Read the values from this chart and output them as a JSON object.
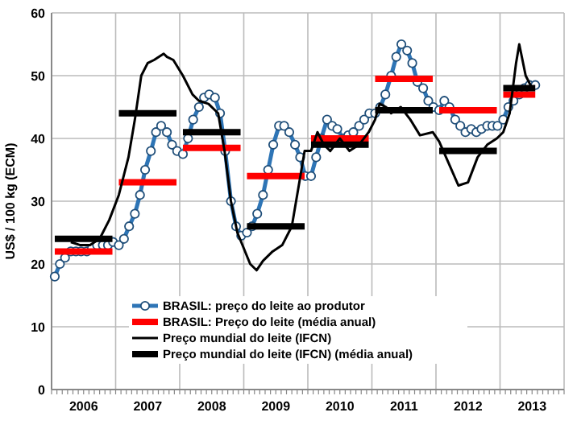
{
  "chart_data": {
    "type": "line",
    "ylabel": "US$ / 100 kg (ECM)",
    "xlim": [
      2006,
      2014
    ],
    "ylim": [
      0,
      60
    ],
    "yticks": [
      0,
      10,
      20,
      30,
      40,
      50,
      60
    ],
    "xticks": [
      {
        "value": 2006,
        "label": null
      },
      {
        "value": 2006.5,
        "label": "2006"
      },
      {
        "value": 2007,
        "label": null
      },
      {
        "value": 2007.5,
        "label": "2007"
      },
      {
        "value": 2008,
        "label": null
      },
      {
        "value": 2008.5,
        "label": "2008"
      },
      {
        "value": 2009,
        "label": null
      },
      {
        "value": 2009.5,
        "label": "2009"
      },
      {
        "value": 2010,
        "label": null
      },
      {
        "value": 2010.5,
        "label": "2010"
      },
      {
        "value": 2011,
        "label": null
      },
      {
        "value": 2011.5,
        "label": "2011"
      },
      {
        "value": 2012,
        "label": null
      },
      {
        "value": 2012.5,
        "label": "2012"
      },
      {
        "value": 2013,
        "label": null
      },
      {
        "value": 2013.5,
        "label": "2013"
      },
      {
        "value": 2014,
        "label": null
      }
    ],
    "grid": true,
    "legend": "bottom",
    "series": [
      {
        "name": "BRASIL: preço do leite ao produtor",
        "color": "#2e75b6",
        "marker": "circle",
        "x": [
          2006.05,
          2006.13,
          2006.21,
          2006.3,
          2006.38,
          2006.46,
          2006.55,
          2006.63,
          2006.71,
          2006.8,
          2006.88,
          2006.96,
          2007.05,
          2007.13,
          2007.21,
          2007.3,
          2007.38,
          2007.46,
          2007.55,
          2007.63,
          2007.71,
          2007.8,
          2007.88,
          2007.96,
          2008.05,
          2008.13,
          2008.21,
          2008.3,
          2008.38,
          2008.46,
          2008.55,
          2008.63,
          2008.71,
          2008.8,
          2008.88,
          2008.96,
          2009.05,
          2009.13,
          2009.21,
          2009.3,
          2009.38,
          2009.46,
          2009.55,
          2009.63,
          2009.71,
          2009.8,
          2009.88,
          2009.96,
          2010.05,
          2010.13,
          2010.21,
          2010.3,
          2010.38,
          2010.46,
          2010.55,
          2010.63,
          2010.71,
          2010.8,
          2010.88,
          2010.96,
          2011.05,
          2011.13,
          2011.21,
          2011.3,
          2011.38,
          2011.46,
          2011.55,
          2011.63,
          2011.71,
          2011.8,
          2011.88,
          2011.96,
          2012.05,
          2012.13,
          2012.21,
          2012.3,
          2012.38,
          2012.46,
          2012.55,
          2012.63,
          2012.71,
          2012.8,
          2012.88,
          2012.96,
          2013.05,
          2013.13,
          2013.21,
          2013.3,
          2013.38,
          2013.46,
          2013.55
        ],
        "values": [
          18,
          20,
          21,
          22,
          22,
          22,
          22,
          22.5,
          23,
          23,
          23,
          23.5,
          23,
          24,
          26,
          28,
          31,
          35,
          38,
          41,
          42,
          41,
          39,
          38,
          37.5,
          40,
          43,
          45,
          46.5,
          47,
          46.5,
          44,
          38,
          30,
          26,
          24.5,
          25,
          26,
          28,
          31,
          35,
          39,
          42,
          42,
          41,
          39,
          37,
          34,
          34,
          37,
          40,
          43,
          42,
          41.5,
          40,
          40.5,
          41,
          42,
          43,
          44,
          44,
          45,
          47,
          50,
          53,
          55,
          54,
          52,
          49,
          48,
          46,
          45,
          44.5,
          46,
          45,
          43,
          42,
          41,
          41.5,
          41,
          41.5,
          42,
          42,
          42,
          43,
          45,
          46,
          47,
          48,
          48.5,
          48.5
        ]
      },
      {
        "name": "BRASIL: Preço do leite (média anual)",
        "color": "#ff0000",
        "x": [
          2006.05,
          2006.95,
          2006.98,
          2007.05,
          2007.95,
          2007.98,
          2008.05,
          2008.95,
          2008.98,
          2009.05,
          2009.95,
          2009.98,
          2010.05,
          2010.95,
          2010.98,
          2011.05,
          2011.95,
          2011.98,
          2012.05,
          2012.95,
          2012.98,
          2013.05,
          2013.55
        ],
        "values": [
          22,
          22,
          null,
          33,
          33,
          null,
          38.5,
          38.5,
          null,
          34,
          34,
          null,
          40,
          40,
          null,
          49.5,
          49.5,
          null,
          44.5,
          44.5,
          null,
          47,
          47
        ]
      },
      {
        "name": "Preço mundial do leite (IFCN)",
        "color": "#000000",
        "x": [
          2006.3,
          2006.45,
          2006.6,
          2006.75,
          2006.9,
          2007.05,
          2007.2,
          2007.3,
          2007.4,
          2007.5,
          2007.6,
          2007.75,
          2007.8,
          2007.9,
          2008.05,
          2008.2,
          2008.3,
          2008.45,
          2008.6,
          2008.7,
          2008.8,
          2008.9,
          2009.1,
          2009.2,
          2009.3,
          2009.45,
          2009.6,
          2009.75,
          2009.85,
          2009.95,
          2010.05,
          2010.15,
          2010.25,
          2010.35,
          2010.5,
          2010.65,
          2010.8,
          2010.95,
          2011.05,
          2011.12,
          2011.22,
          2011.3,
          2011.45,
          2011.6,
          2011.75,
          2011.95,
          2012.05,
          2012.2,
          2012.35,
          2012.5,
          2012.65,
          2012.8,
          2012.95,
          2013.05,
          2013.15,
          2013.25,
          2013.3,
          2013.4,
          2013.5
        ],
        "values": [
          23.5,
          23,
          23,
          24,
          27,
          31,
          37,
          43,
          50,
          52,
          52.5,
          53.5,
          53,
          52.5,
          50,
          47,
          46,
          45.5,
          44,
          38,
          30,
          25,
          20,
          19,
          20.5,
          22,
          23,
          26,
          32,
          38,
          38,
          41,
          39,
          38,
          40,
          38,
          39,
          41,
          43,
          45.5,
          45,
          44,
          45,
          43,
          40.5,
          41,
          39.5,
          36,
          32.5,
          33,
          37,
          39,
          40,
          41,
          44,
          52,
          55,
          50,
          48
        ]
      },
      {
        "name": "Preço mundial do leite (IFCN)  (média anual)",
        "color": "#000000",
        "x": [
          2006.05,
          2006.95,
          2006.98,
          2007.05,
          2007.95,
          2007.98,
          2008.05,
          2008.95,
          2008.98,
          2009.05,
          2009.95,
          2009.98,
          2010.05,
          2010.95,
          2010.98,
          2011.05,
          2011.95,
          2011.98,
          2012.05,
          2012.95,
          2012.98,
          2013.05,
          2013.55
        ],
        "values": [
          24,
          24,
          null,
          44,
          44,
          null,
          41,
          41,
          null,
          26,
          26,
          null,
          39,
          39,
          null,
          44.5,
          44.5,
          null,
          38,
          38,
          null,
          48,
          48
        ]
      }
    ]
  }
}
